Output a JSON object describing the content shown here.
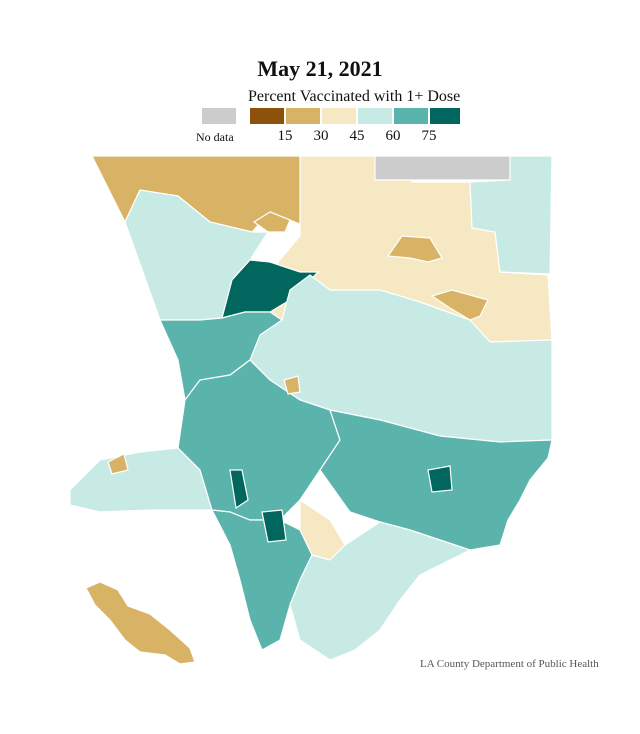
{
  "title": "May 21, 2021",
  "legend": {
    "title": "Percent Vaccinated with 1+ Dose",
    "no_data_label": "No data",
    "ticks": [
      "15",
      "30",
      "45",
      "60",
      "75"
    ],
    "bins": [
      {
        "range": "0–15",
        "color": "#8c510a"
      },
      {
        "range": "15–30",
        "color": "#d8b365"
      },
      {
        "range": "30–45",
        "color": "#f6e8c3"
      },
      {
        "range": "45–60",
        "color": "#c7eae5"
      },
      {
        "range": "60–75",
        "color": "#5ab4ac"
      },
      {
        "range": "75+",
        "color": "#01665e"
      }
    ],
    "no_data_color": "#cccccc"
  },
  "credit": "LA County Department of Public Health",
  "map": {
    "subject": "Los Angeles County vaccination rate by community",
    "regions": [
      {
        "name": "north-west-region",
        "bin": 1
      },
      {
        "name": "antelope-valley-central",
        "bin": 2
      },
      {
        "name": "antelope-valley-east",
        "bin": 2
      },
      {
        "name": "no-data-north",
        "bin": -1
      },
      {
        "name": "north-east-desert",
        "bin": 3
      },
      {
        "name": "santa-clarita-valley",
        "bin": 3
      },
      {
        "name": "high-rate-north-area",
        "bin": 5
      },
      {
        "name": "angeles-forest",
        "bin": 3
      },
      {
        "name": "mid-band-central",
        "bin": 2
      },
      {
        "name": "lancaster-area",
        "bin": 1
      },
      {
        "name": "palmdale-area",
        "bin": 1
      },
      {
        "name": "san-fernando-valley",
        "bin": 4
      },
      {
        "name": "malibu-coast",
        "bin": 3
      },
      {
        "name": "central-la-basin",
        "bin": 4
      },
      {
        "name": "east-san-gabriel-valley",
        "bin": 4
      },
      {
        "name": "south-bay",
        "bin": 4
      },
      {
        "name": "long-beach",
        "bin": 3
      },
      {
        "name": "catalina-island",
        "bin": 1
      },
      {
        "name": "central-lower-rate",
        "bin": 2
      },
      {
        "name": "high-rate-west",
        "bin": 5
      },
      {
        "name": "high-rate-east",
        "bin": 5
      },
      {
        "name": "high-rate-south",
        "bin": 5
      }
    ]
  }
}
